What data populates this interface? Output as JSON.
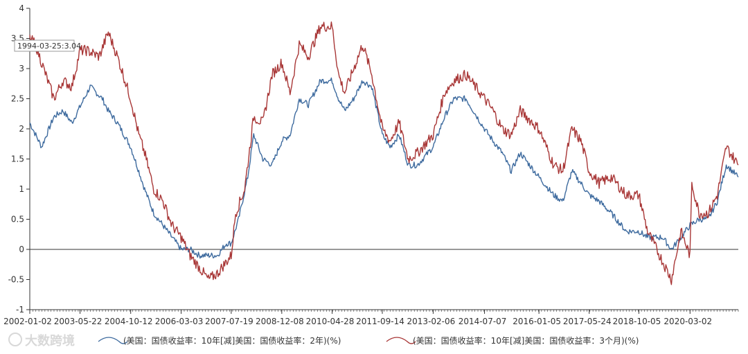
{
  "chart_data": {
    "type": "line",
    "title": "",
    "xlabel": "",
    "ylabel": "",
    "ylim": [
      -1,
      4
    ],
    "yticks": [
      -1,
      -0.5,
      0,
      0.5,
      1,
      1.5,
      2,
      2.5,
      3,
      3.5,
      4
    ],
    "ytick_labels": [
      "-1",
      "-0.5",
      "0",
      "0.5",
      "1",
      "1.5",
      "2",
      "2.5",
      "3",
      "3.5",
      "4"
    ],
    "xticks": [
      "2002-01-02",
      "2003-05-22",
      "2004-10-12",
      "2006-03-03",
      "2007-07-19",
      "2008-12-08",
      "2010-04-28",
      "2011-09-14",
      "2013-02-06",
      "2014-07-07",
      "2016-01-05",
      "2017-05-24",
      "2018-10-05",
      "2020-03-02"
    ],
    "x_range": [
      "2002-01-02",
      "2021-06-30"
    ],
    "zero_line": true,
    "legend_position": "bottom",
    "series": [
      {
        "name": "(美国：国债收益率：10年[减]美国：国债收益率：2年)(%)",
        "color": "#3d6a9e",
        "points": [
          [
            "2002-01-02",
            2.1
          ],
          [
            "2002-05-01",
            1.7
          ],
          [
            "2002-09-01",
            2.2
          ],
          [
            "2002-12-01",
            2.3
          ],
          [
            "2003-03-01",
            2.1
          ],
          [
            "2003-06-01",
            2.4
          ],
          [
            "2003-09-01",
            2.7
          ],
          [
            "2004-01-01",
            2.5
          ],
          [
            "2004-03-01",
            2.3
          ],
          [
            "2004-06-01",
            2.1
          ],
          [
            "2004-10-12",
            1.7
          ],
          [
            "2005-01-01",
            1.3
          ],
          [
            "2005-03-01",
            1.0
          ],
          [
            "2005-06-01",
            0.6
          ],
          [
            "2005-09-01",
            0.4
          ],
          [
            "2005-12-01",
            0.2
          ],
          [
            "2006-03-03",
            0.0
          ],
          [
            "2006-06-01",
            0.0
          ],
          [
            "2006-09-01",
            -0.1
          ],
          [
            "2006-12-01",
            -0.1
          ],
          [
            "2007-03-01",
            -0.1
          ],
          [
            "2007-06-01",
            0.1
          ],
          [
            "2007-07-19",
            0.1
          ],
          [
            "2007-10-01",
            0.5
          ],
          [
            "2008-01-01",
            1.2
          ],
          [
            "2008-03-01",
            1.9
          ],
          [
            "2008-06-01",
            1.5
          ],
          [
            "2008-09-01",
            1.4
          ],
          [
            "2008-12-08",
            1.8
          ],
          [
            "2009-03-01",
            1.9
          ],
          [
            "2009-06-01",
            2.5
          ],
          [
            "2009-09-01",
            2.4
          ],
          [
            "2010-01-01",
            2.8
          ],
          [
            "2010-04-28",
            2.8
          ],
          [
            "2010-07-01",
            2.5
          ],
          [
            "2010-09-01",
            2.3
          ],
          [
            "2010-12-01",
            2.5
          ],
          [
            "2011-03-01",
            2.8
          ],
          [
            "2011-06-01",
            2.7
          ],
          [
            "2011-09-14",
            1.9
          ],
          [
            "2011-12-01",
            1.7
          ],
          [
            "2012-03-01",
            1.9
          ],
          [
            "2012-06-01",
            1.4
          ],
          [
            "2012-09-01",
            1.4
          ],
          [
            "2013-02-06",
            1.7
          ],
          [
            "2013-06-01",
            2.2
          ],
          [
            "2013-09-01",
            2.5
          ],
          [
            "2014-01-01",
            2.5
          ],
          [
            "2014-07-07",
            2.0
          ],
          [
            "2014-10-01",
            1.8
          ],
          [
            "2015-01-01",
            1.6
          ],
          [
            "2015-04-01",
            1.3
          ],
          [
            "2015-07-01",
            1.6
          ],
          [
            "2016-01-05",
            1.2
          ],
          [
            "2016-06-01",
            0.9
          ],
          [
            "2016-09-01",
            0.8
          ],
          [
            "2016-12-01",
            1.3
          ],
          [
            "2017-03-01",
            1.1
          ],
          [
            "2017-05-24",
            0.9
          ],
          [
            "2017-09-01",
            0.8
          ],
          [
            "2018-01-01",
            0.6
          ],
          [
            "2018-06-01",
            0.3
          ],
          [
            "2018-10-05",
            0.3
          ],
          [
            "2019-01-01",
            0.2
          ],
          [
            "2019-06-01",
            0.2
          ],
          [
            "2019-08-28",
            0.0
          ],
          [
            "2019-12-01",
            0.2
          ],
          [
            "2020-03-02",
            0.4
          ],
          [
            "2020-06-01",
            0.5
          ],
          [
            "2020-09-01",
            0.5
          ],
          [
            "2020-12-01",
            0.8
          ],
          [
            "2021-03-01",
            1.4
          ],
          [
            "2021-06-30",
            1.2
          ]
        ]
      },
      {
        "name": "(美国：国债收益率：10年[减]美国：国债收益率：3个月)(%)",
        "color": "#a83636",
        "points": [
          [
            "2002-01-02",
            3.5
          ],
          [
            "2002-03-01",
            3.4
          ],
          [
            "2002-07-01",
            2.8
          ],
          [
            "2002-09-01",
            2.5
          ],
          [
            "2002-12-01",
            2.8
          ],
          [
            "2003-03-01",
            2.7
          ],
          [
            "2003-05-22",
            3.3
          ],
          [
            "2003-08-01",
            3.3
          ],
          [
            "2003-12-01",
            3.2
          ],
          [
            "2004-03-01",
            3.6
          ],
          [
            "2004-06-01",
            3.2
          ],
          [
            "2004-10-12",
            2.5
          ],
          [
            "2005-01-01",
            1.9
          ],
          [
            "2005-03-01",
            1.6
          ],
          [
            "2005-06-01",
            1.0
          ],
          [
            "2005-09-01",
            0.8
          ],
          [
            "2005-12-01",
            0.4
          ],
          [
            "2006-03-03",
            0.2
          ],
          [
            "2006-06-01",
            -0.1
          ],
          [
            "2006-09-01",
            -0.3
          ],
          [
            "2006-12-01",
            -0.5
          ],
          [
            "2007-03-01",
            -0.4
          ],
          [
            "2007-07-19",
            -0.1
          ],
          [
            "2007-09-01",
            0.6
          ],
          [
            "2007-12-01",
            1.0
          ],
          [
            "2008-03-01",
            2.2
          ],
          [
            "2008-06-01",
            2.1
          ],
          [
            "2008-09-01",
            2.9
          ],
          [
            "2008-12-08",
            3.1
          ],
          [
            "2009-03-01",
            2.6
          ],
          [
            "2009-06-01",
            3.4
          ],
          [
            "2009-09-01",
            3.2
          ],
          [
            "2010-01-01",
            3.7
          ],
          [
            "2010-04-28",
            3.7
          ],
          [
            "2010-07-01",
            2.9
          ],
          [
            "2010-09-01",
            2.6
          ],
          [
            "2010-12-01",
            3.0
          ],
          [
            "2011-03-01",
            3.4
          ],
          [
            "2011-06-01",
            2.9
          ],
          [
            "2011-09-14",
            2.0
          ],
          [
            "2011-12-01",
            1.8
          ],
          [
            "2012-03-01",
            2.1
          ],
          [
            "2012-06-01",
            1.5
          ],
          [
            "2012-09-01",
            1.6
          ],
          [
            "2013-02-06",
            1.9
          ],
          [
            "2013-06-01",
            2.6
          ],
          [
            "2013-09-01",
            2.8
          ],
          [
            "2014-01-01",
            2.9
          ],
          [
            "2014-07-07",
            2.5
          ],
          [
            "2014-10-01",
            2.3
          ],
          [
            "2015-01-01",
            2.0
          ],
          [
            "2015-04-01",
            1.9
          ],
          [
            "2015-07-01",
            2.3
          ],
          [
            "2016-01-05",
            2.0
          ],
          [
            "2016-06-01",
            1.4
          ],
          [
            "2016-09-01",
            1.3
          ],
          [
            "2016-12-01",
            2.0
          ],
          [
            "2017-03-01",
            1.8
          ],
          [
            "2017-05-24",
            1.3
          ],
          [
            "2017-09-01",
            1.1
          ],
          [
            "2018-01-01",
            1.2
          ],
          [
            "2018-06-01",
            0.9
          ],
          [
            "2018-10-05",
            0.9
          ],
          [
            "2019-01-01",
            0.3
          ],
          [
            "2019-06-01",
            -0.2
          ],
          [
            "2019-08-28",
            -0.5
          ],
          [
            "2019-12-01",
            0.3
          ],
          [
            "2020-03-02",
            -0.1
          ],
          [
            "2020-03-20",
            1.1
          ],
          [
            "2020-06-01",
            0.6
          ],
          [
            "2020-09-01",
            0.6
          ],
          [
            "2020-12-01",
            0.9
          ],
          [
            "2021-03-01",
            1.7
          ],
          [
            "2021-06-30",
            1.4
          ]
        ]
      }
    ],
    "tooltip": {
      "text": "1994-03-25:3.04"
    }
  },
  "watermark": {
    "text": "大数跨境"
  },
  "colors": {
    "axis": "#333333",
    "zero_line": "#333333",
    "tooltip_border": "#999999"
  }
}
